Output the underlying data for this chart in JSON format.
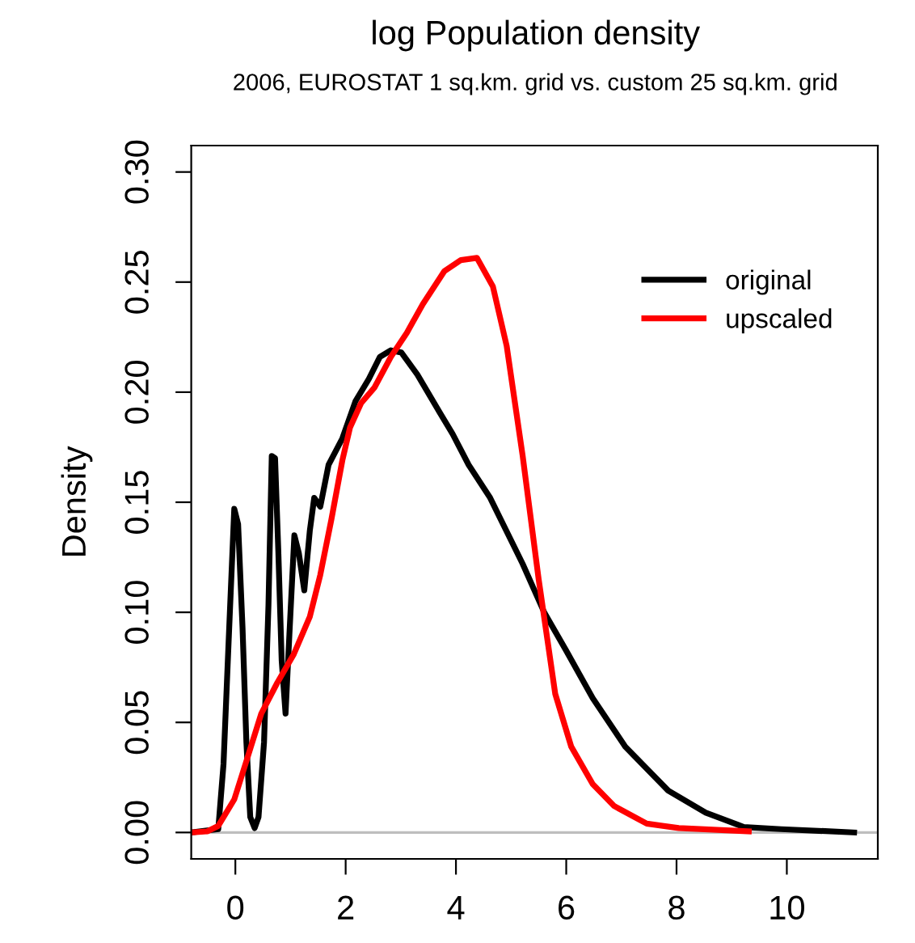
{
  "chart_data": {
    "type": "line",
    "title": "log Population density",
    "subtitle": "2006, EUROSTAT 1 sq.km. grid vs. custom 25 sq.km. grid",
    "ylabel": "Density",
    "xlim": [
      -0.8,
      11.65
    ],
    "ylim": [
      -0.012,
      0.312
    ],
    "xticks": [
      0,
      2,
      4,
      6,
      8,
      10
    ],
    "yticks": [
      {
        "value": 0,
        "label": "0.00"
      },
      {
        "value": 0.05,
        "label": "0.05"
      },
      {
        "value": 0.1,
        "label": "0.10"
      },
      {
        "value": 0.15,
        "label": "0.15"
      },
      {
        "value": 0.2,
        "label": "0.20"
      },
      {
        "value": 0.25,
        "label": "0.25"
      },
      {
        "value": 0.3,
        "label": "0.30"
      }
    ],
    "grid": false,
    "legend": "top right",
    "line_style": "solid",
    "marker": "none",
    "ref_lines": [
      {
        "axis": "y",
        "value": 0,
        "color": "#bebebe"
      }
    ],
    "series": [
      {
        "name": "original",
        "color": "#000000",
        "x": [
          -0.8,
          -0.31,
          -0.215,
          -0.12,
          -0.02,
          0.05,
          0.13,
          0.2,
          0.27,
          0.35,
          0.42,
          0.52,
          0.6,
          0.66,
          0.72,
          0.78,
          0.84,
          0.91,
          0.98,
          1.07,
          1.15,
          1.25,
          1.35,
          1.43,
          1.54,
          1.69,
          1.94,
          2.18,
          2.42,
          2.62,
          2.82,
          3.01,
          3.3,
          3.7,
          3.94,
          4.23,
          4.62,
          5.21,
          5.6,
          5.99,
          6.48,
          7.07,
          7.85,
          8.53,
          9.22,
          9.9,
          11.22
        ],
        "values": [
          0,
          0.0015,
          0.031,
          0.088,
          0.147,
          0.14,
          0.093,
          0.041,
          0.007,
          0.002,
          0.007,
          0.041,
          0.103,
          0.171,
          0.17,
          0.127,
          0.078,
          0.054,
          0.09,
          0.135,
          0.127,
          0.11,
          0.137,
          0.152,
          0.148,
          0.167,
          0.179,
          0.196,
          0.206,
          0.216,
          0.219,
          0.218,
          0.208,
          0.191,
          0.181,
          0.167,
          0.152,
          0.122,
          0.1,
          0.083,
          0.061,
          0.039,
          0.019,
          0.009,
          0.0025,
          0.0015,
          0
        ]
      },
      {
        "name": "upscaled",
        "color": "#ff0000",
        "x": [
          -0.8,
          -0.51,
          -0.31,
          -0.02,
          0.22,
          0.47,
          0.76,
          1.06,
          1.35,
          1.54,
          1.74,
          1.94,
          2.08,
          2.28,
          2.52,
          2.82,
          3.11,
          3.4,
          3.79,
          4.09,
          4.38,
          4.67,
          4.92,
          5.21,
          5.5,
          5.8,
          6.09,
          6.48,
          6.87,
          7.46,
          8.04,
          9.31
        ],
        "values": [
          0,
          0.0005,
          0.003,
          0.015,
          0.034,
          0.054,
          0.068,
          0.081,
          0.098,
          0.117,
          0.142,
          0.169,
          0.184,
          0.195,
          0.202,
          0.216,
          0.227,
          0.24,
          0.255,
          0.26,
          0.261,
          0.248,
          0.221,
          0.171,
          0.115,
          0.063,
          0.039,
          0.022,
          0.012,
          0.004,
          0.002,
          0.0005
        ]
      }
    ]
  }
}
